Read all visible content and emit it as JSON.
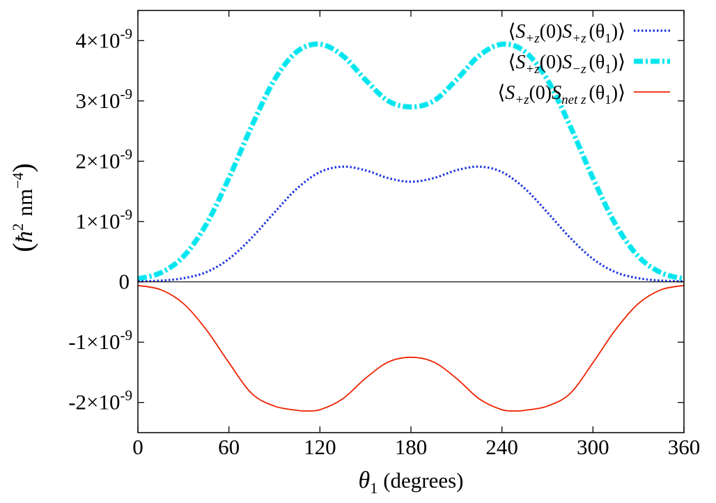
{
  "chart_data": {
    "type": "line",
    "title": "",
    "xlabel_symbol": "θ",
    "xlabel_sub": "1",
    "xlabel_rest": "(degrees)",
    "ylabel_paren_open": "(",
    "ylabel_hbar": "ħ",
    "ylabel_hbar_exp": "2",
    "ylabel_unit": "nm",
    "ylabel_unit_exp": "−4",
    "ylabel_paren_close": ")",
    "xlim": [
      0,
      360
    ],
    "ylim": [
      -2.5e-09,
      4.5e-09
    ],
    "x_ticks": [
      {
        "value": 0,
        "label": "0"
      },
      {
        "value": 60,
        "label": "60"
      },
      {
        "value": 120,
        "label": "120"
      },
      {
        "value": 180,
        "label": "180"
      },
      {
        "value": 240,
        "label": "240"
      },
      {
        "value": 300,
        "label": "300"
      },
      {
        "value": 360,
        "label": "360"
      }
    ],
    "y_ticks": [
      {
        "value": 4e-09,
        "label": "4×10",
        "exp": "-9"
      },
      {
        "value": 3e-09,
        "label": "3×10",
        "exp": "-9"
      },
      {
        "value": 2e-09,
        "label": "2×10",
        "exp": "-9"
      },
      {
        "value": 1e-09,
        "label": "1×10",
        "exp": "-9"
      },
      {
        "value": 0,
        "label": "0",
        "exp": ""
      },
      {
        "value": -1e-09,
        "label": "-1×10",
        "exp": "-9"
      },
      {
        "value": -2e-09,
        "label": "-2×10",
        "exp": "-9"
      }
    ],
    "grid": false,
    "zero_line": true,
    "legend_position": "top-right",
    "series": [
      {
        "name": "⟨S+z(0) S+z(θ1)⟩",
        "legend": {
          "open": "⟨",
          "S": "S",
          "sub1": "+z",
          "mid": "(0)",
          "sub2": "+z",
          "arg": "(θ",
          "argsub": "1",
          "close": ")⟩"
        },
        "color": "#1f35e0",
        "style": "dotted",
        "x": [
          0,
          15,
          30,
          45,
          60,
          75,
          90,
          105,
          120,
          135,
          150,
          165,
          180,
          195,
          210,
          225,
          240,
          255,
          270,
          285,
          300,
          315,
          330,
          345,
          360
        ],
        "values": [
          1e-11,
          2e-11,
          6e-11,
          1.6e-10,
          3.8e-10,
          7.3e-10,
          1.15e-09,
          1.55e-09,
          1.82e-09,
          1.91e-09,
          1.85e-09,
          1.72e-09,
          1.66e-09,
          1.72e-09,
          1.85e-09,
          1.91e-09,
          1.82e-09,
          1.55e-09,
          1.15e-09,
          7.3e-10,
          3.8e-10,
          1.6e-10,
          6e-11,
          2e-11,
          1e-11
        ]
      },
      {
        "name": "⟨S+z(0) S−z(θ1)⟩",
        "legend": {
          "open": "⟨",
          "S": "S",
          "sub1": "+z",
          "mid": "(0)",
          "sub2": "−z",
          "arg": "(θ",
          "argsub": "1",
          "close": ")⟩"
        },
        "color": "#00e5ee",
        "style": "dash-dot",
        "x": [
          0,
          15,
          30,
          45,
          60,
          75,
          90,
          105,
          120,
          135,
          150,
          165,
          180,
          195,
          210,
          225,
          240,
          255,
          270,
          285,
          300,
          315,
          330,
          345,
          360
        ],
        "values": [
          5e-11,
          1.5e-10,
          4.2e-10,
          9.5e-10,
          1.72e-09,
          2.58e-09,
          3.35e-09,
          3.82e-09,
          3.94e-09,
          3.75e-09,
          3.35e-09,
          3e-09,
          2.9e-09,
          3e-09,
          3.35e-09,
          3.75e-09,
          3.94e-09,
          3.82e-09,
          3.35e-09,
          2.58e-09,
          1.72e-09,
          9.5e-10,
          4.2e-10,
          1.5e-10,
          5e-11
        ]
      },
      {
        "name": "⟨S+z(0) Snet z(θ1)⟩",
        "legend": {
          "open": "⟨",
          "S": "S",
          "sub1": "+z",
          "mid": "(0)",
          "sub2": "net z",
          "arg": "(θ",
          "argsub": "1",
          "close": ")⟩"
        },
        "color": "#ee2200",
        "style": "solid",
        "x": [
          0,
          15,
          30,
          45,
          60,
          75,
          90,
          105,
          110,
          120,
          135,
          150,
          165,
          180,
          195,
          210,
          225,
          240,
          250,
          255,
          270,
          285,
          300,
          315,
          330,
          345,
          360
        ],
        "values": [
          -6e-11,
          -1.3e-10,
          -3.6e-10,
          -7.9e-10,
          -1.34e-09,
          -1.85e-09,
          -2.06e-09,
          -2.13e-09,
          -2.14e-09,
          -2.12e-09,
          -1.94e-09,
          -1.6e-09,
          -1.33e-09,
          -1.25e-09,
          -1.33e-09,
          -1.6e-09,
          -1.94e-09,
          -2.12e-09,
          -2.14e-09,
          -2.13e-09,
          -2.06e-09,
          -1.85e-09,
          -1.34e-09,
          -7.9e-10,
          -3.6e-10,
          -1.3e-10,
          -6e-11
        ]
      }
    ]
  }
}
